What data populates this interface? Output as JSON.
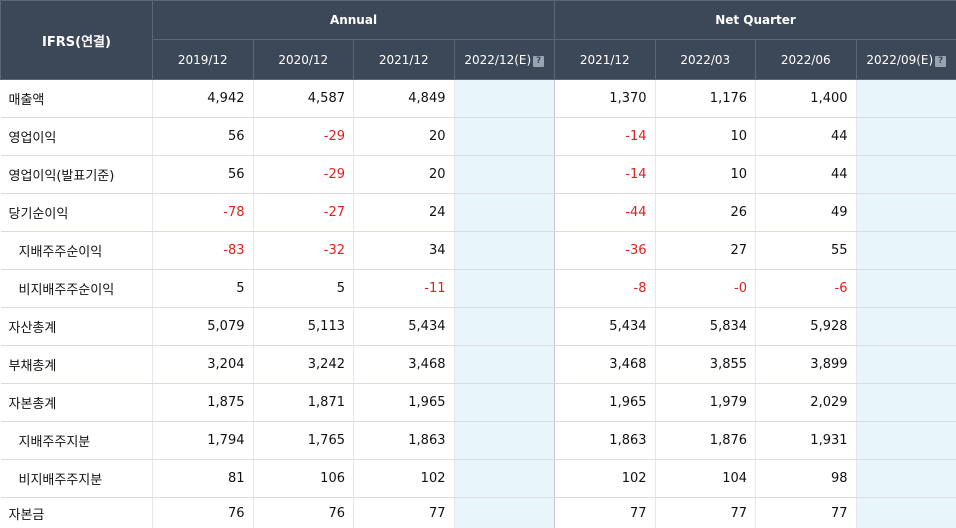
{
  "header": {
    "corner": "IFRS(연결)",
    "groups": [
      "Annual",
      "Net Quarter"
    ],
    "annual_periods": [
      "2019/12",
      "2020/12",
      "2021/12",
      "2022/12(E)"
    ],
    "quarter_periods": [
      "2021/12",
      "2022/03",
      "2022/06",
      "2022/09(E)"
    ],
    "help_icon_glyph": "?"
  },
  "rows": [
    {
      "label": "매출액",
      "sub": false,
      "values": [
        "4,942",
        "4,587",
        "4,849",
        "",
        "1,370",
        "1,176",
        "1,400",
        ""
      ]
    },
    {
      "label": "영업이익",
      "sub": false,
      "values": [
        "56",
        "-29",
        "20",
        "",
        "-14",
        "10",
        "44",
        ""
      ]
    },
    {
      "label": "영업이익(발표기준)",
      "sub": false,
      "values": [
        "56",
        "-29",
        "20",
        "",
        "-14",
        "10",
        "44",
        ""
      ]
    },
    {
      "label": "당기순이익",
      "sub": false,
      "values": [
        "-78",
        "-27",
        "24",
        "",
        "-44",
        "26",
        "49",
        ""
      ]
    },
    {
      "label": "지배주주순이익",
      "sub": true,
      "values": [
        "-83",
        "-32",
        "34",
        "",
        "-36",
        "27",
        "55",
        ""
      ]
    },
    {
      "label": "비지배주주순이익",
      "sub": true,
      "values": [
        "5",
        "5",
        "-11",
        "",
        "-8",
        "-0",
        "-6",
        ""
      ]
    },
    {
      "label": "자산총계",
      "sub": false,
      "values": [
        "5,079",
        "5,113",
        "5,434",
        "",
        "5,434",
        "5,834",
        "5,928",
        ""
      ]
    },
    {
      "label": "부채총계",
      "sub": false,
      "values": [
        "3,204",
        "3,242",
        "3,468",
        "",
        "3,468",
        "3,855",
        "3,899",
        ""
      ]
    },
    {
      "label": "자본총계",
      "sub": false,
      "values": [
        "1,875",
        "1,871",
        "1,965",
        "",
        "1,965",
        "1,979",
        "2,029",
        ""
      ]
    },
    {
      "label": "지배주주지분",
      "sub": true,
      "values": [
        "1,794",
        "1,765",
        "1,863",
        "",
        "1,863",
        "1,876",
        "1,931",
        ""
      ]
    },
    {
      "label": "비지배주주지분",
      "sub": true,
      "values": [
        "81",
        "106",
        "102",
        "",
        "102",
        "104",
        "98",
        ""
      ]
    },
    {
      "label": "자본금",
      "sub": false,
      "values": [
        "76",
        "76",
        "77",
        "",
        "77",
        "77",
        "77",
        ""
      ]
    }
  ],
  "colors": {
    "header_bg": "#3c4858",
    "estimate_bg": "#e8f6fc",
    "negative_text": "#e02020"
  },
  "icons": {
    "help": "help-icon"
  }
}
